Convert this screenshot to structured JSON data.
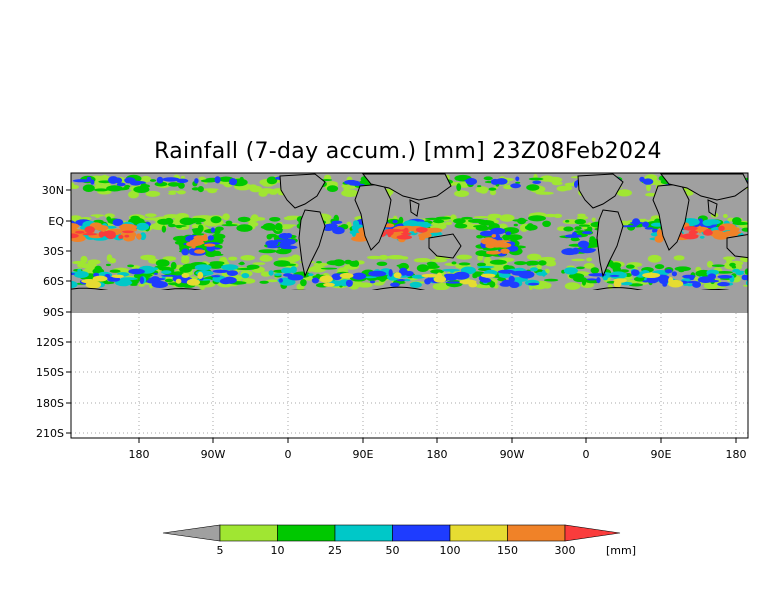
{
  "title": "Rainfall (7-day accum.) [mm] 23Z08Feb2024",
  "y_ticks": [
    "30N",
    "EQ",
    "30S",
    "60S",
    "90S",
    "120S",
    "150S",
    "180S",
    "210S"
  ],
  "x_ticks": [
    "180",
    "90W",
    "0",
    "90E",
    "180",
    "90W",
    "0",
    "90E",
    "180"
  ],
  "legend": {
    "unit": "[mm]",
    "labels": [
      "5",
      "10",
      "25",
      "50",
      "100",
      "150",
      "300"
    ],
    "colors": [
      "#a0a0a0",
      "#a0e632",
      "#00c800",
      "#00c8c8",
      "#1e3cff",
      "#e6dc32",
      "#f08228",
      "#fa3c3c"
    ]
  },
  "colors": {
    "land_mask": "#a0a0a0",
    "coast": "#000000",
    "grid": "#a8a8a8"
  }
}
